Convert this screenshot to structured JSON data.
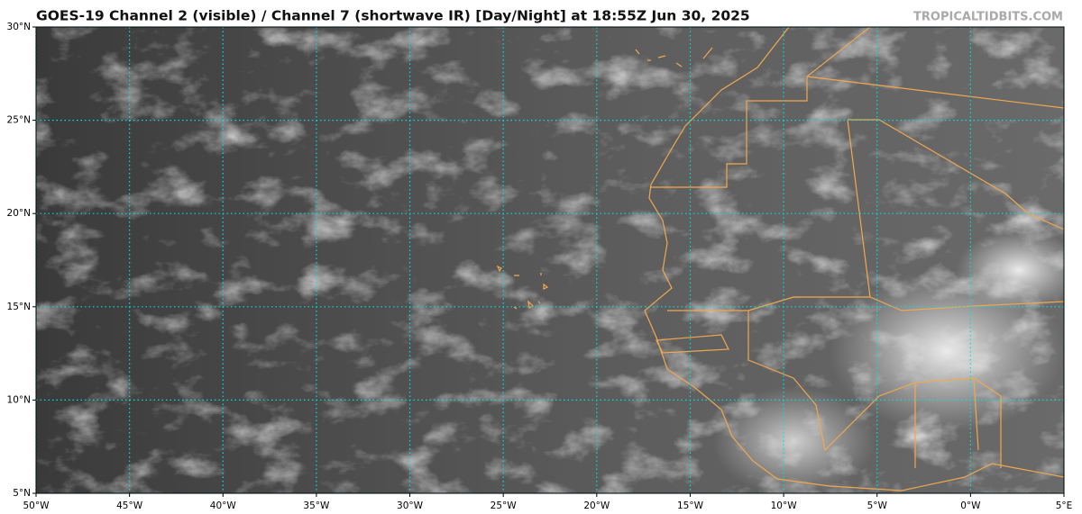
{
  "chart_data": {
    "type": "map",
    "title": "GOES-19 Channel 2 (visible) / Channel 7 (shortwave IR) [Day/Night] at 18:55Z Jun 30, 2025",
    "watermark": "TROPICALTIDBITS.COM",
    "xlim": [
      -50,
      5
    ],
    "ylim": [
      5,
      30
    ],
    "xticks": [
      {
        "value": -50,
        "label": "50°W"
      },
      {
        "value": -45,
        "label": "45°W"
      },
      {
        "value": -40,
        "label": "40°W"
      },
      {
        "value": -35,
        "label": "35°W"
      },
      {
        "value": -30,
        "label": "30°W"
      },
      {
        "value": -25,
        "label": "25°W"
      },
      {
        "value": -20,
        "label": "20°W"
      },
      {
        "value": -15,
        "label": "15°W"
      },
      {
        "value": -10,
        "label": "10°W"
      },
      {
        "value": -5,
        "label": "5°W"
      },
      {
        "value": 0,
        "label": "0°W"
      },
      {
        "value": 5,
        "label": "5°E"
      }
    ],
    "yticks": [
      {
        "value": 5,
        "label": "5°N"
      },
      {
        "value": 10,
        "label": "10°N"
      },
      {
        "value": 15,
        "label": "15°N"
      },
      {
        "value": 20,
        "label": "20°N"
      },
      {
        "value": 25,
        "label": "25°N"
      },
      {
        "value": 30,
        "label": "30°N"
      }
    ],
    "grid": true,
    "grid_color": "#00e0e0",
    "border_color": "#f0a850"
  }
}
